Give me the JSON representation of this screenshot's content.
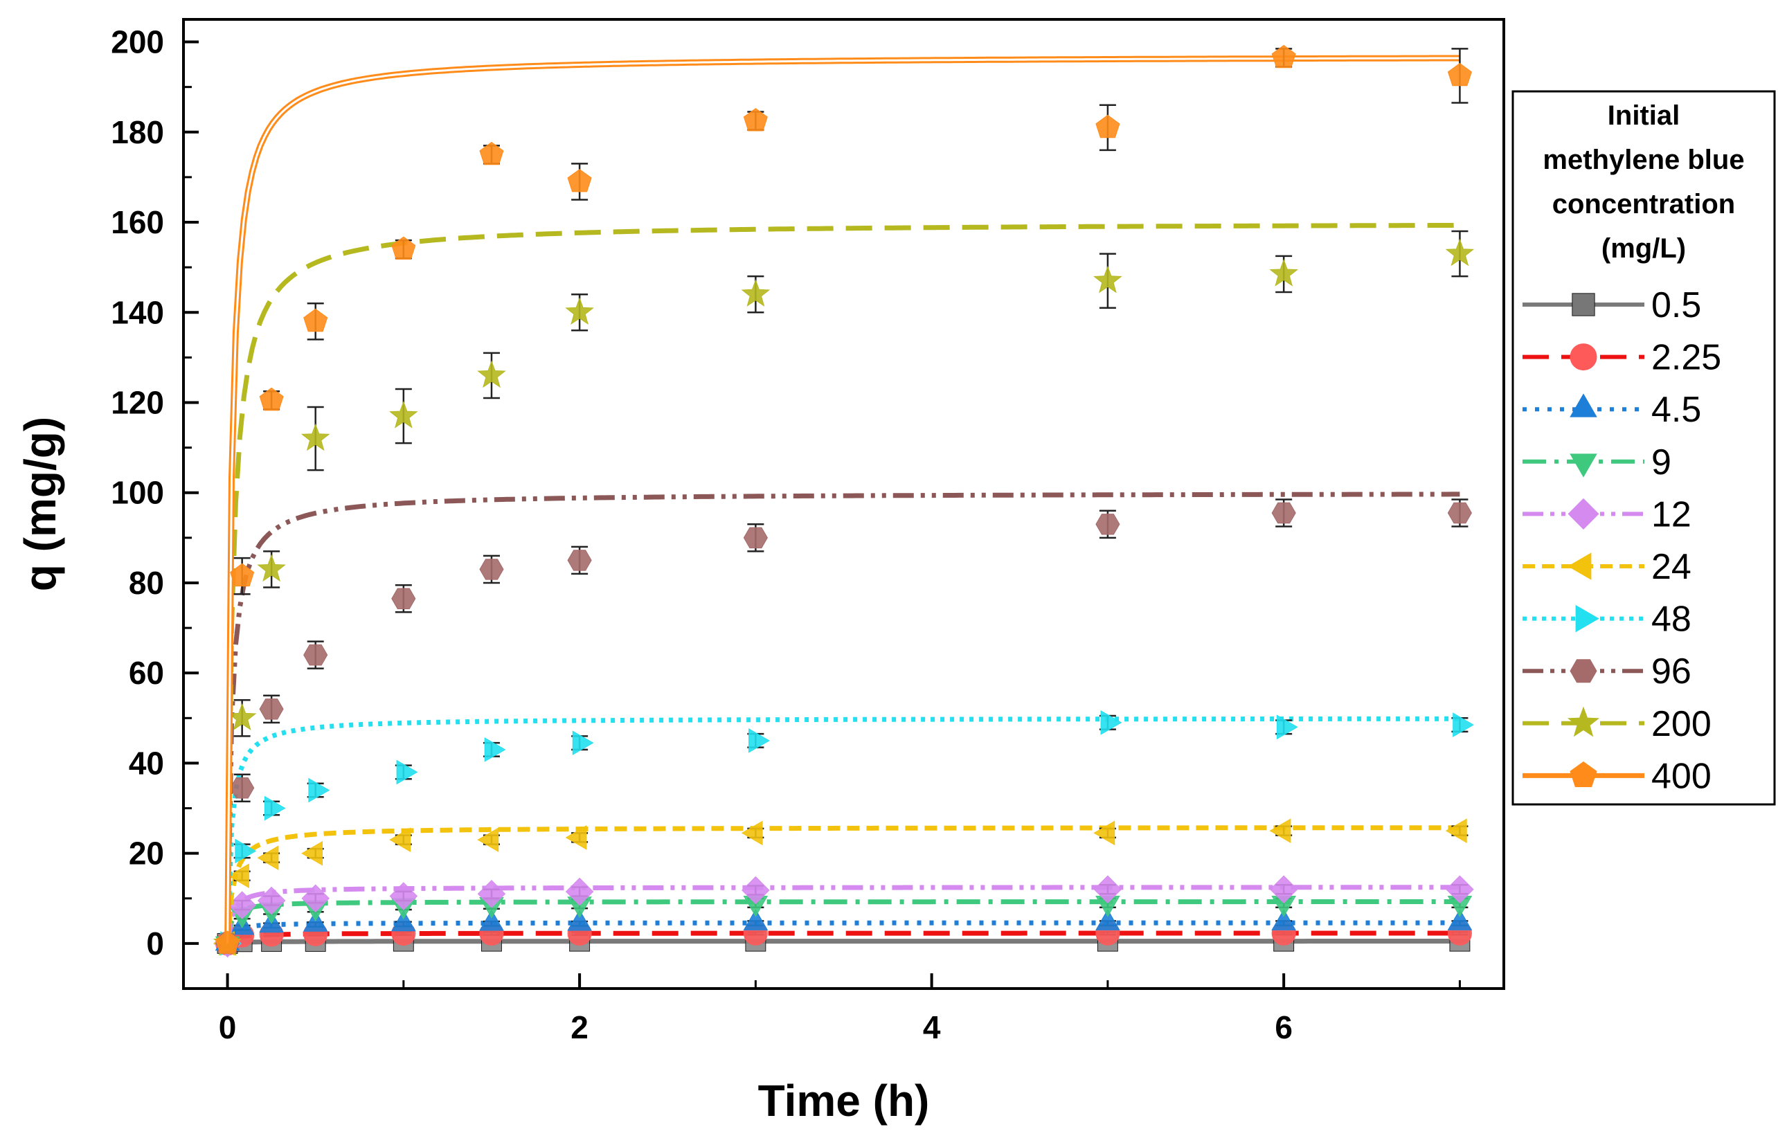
{
  "chart_data": {
    "type": "line",
    "title": "",
    "xlabel": "Time (h)",
    "ylabel": "q (mg/g)",
    "xlim": [
      -0.25,
      7.25
    ],
    "ylim": [
      -10,
      205
    ],
    "x_ticks": [
      0,
      2,
      4,
      6
    ],
    "y_ticks": [
      0,
      20,
      40,
      60,
      80,
      100,
      120,
      140,
      160,
      180,
      200
    ],
    "grid": false,
    "legend": {
      "title_lines": [
        "Initial",
        "methylene blue",
        "concentration",
        "(mg/L)"
      ],
      "placement": "right"
    },
    "x": [
      0,
      0.083,
      0.25,
      0.5,
      1,
      1.5,
      2,
      3,
      5,
      6,
      7
    ],
    "series": [
      {
        "name": "0.5",
        "color": "#1a1a1a",
        "fit_color": "#7a7a7a",
        "marker": "square",
        "dash": "solid",
        "values": [
          0,
          0.4,
          0.45,
          0.45,
          0.5,
          0.5,
          0.5,
          0.5,
          0.5,
          0.5,
          0.5
        ],
        "errors": [
          0,
          0.2,
          0.2,
          0.2,
          0.2,
          0.2,
          0.2,
          0.2,
          0.2,
          0.2,
          0.2
        ],
        "qe": 0.52,
        "k": 20
      },
      {
        "name": "2.25",
        "color": "#ff5a5a",
        "fit_color": "#ee1111",
        "marker": "circle",
        "dash": "long-dash",
        "values": [
          0,
          1.8,
          2.0,
          2.1,
          2.2,
          2.2,
          2.2,
          2.25,
          2.25,
          2.25,
          2.25
        ],
        "errors": [
          0,
          0.3,
          0.3,
          0.3,
          0.3,
          0.3,
          0.3,
          0.3,
          0.3,
          0.3,
          0.3
        ],
        "qe": 2.3,
        "k": 10
      },
      {
        "name": "4.5",
        "color": "#1e7fd8",
        "fit_color": "#1e7fd8",
        "marker": "triangle-up",
        "dash": "dot",
        "values": [
          0,
          3.5,
          4.0,
          4.2,
          4.3,
          4.4,
          4.4,
          4.5,
          4.5,
          4.5,
          4.5
        ],
        "errors": [
          0,
          0.5,
          0.5,
          0.5,
          0.5,
          0.5,
          0.5,
          0.5,
          0.5,
          0.5,
          0.5
        ],
        "qe": 4.6,
        "k": 8
      },
      {
        "name": "9",
        "color": "#3ec97e",
        "fit_color": "#3ec97e",
        "marker": "triangle-down",
        "dash": "dash-dot",
        "values": [
          0,
          6.5,
          7.5,
          8.0,
          8.5,
          8.7,
          8.8,
          9.0,
          9.0,
          9.0,
          9.0
        ],
        "errors": [
          0,
          1.0,
          1.0,
          1.0,
          1.0,
          1.0,
          1.0,
          1.0,
          1.0,
          1.0,
          1.0
        ],
        "qe": 9.3,
        "k": 5
      },
      {
        "name": "12",
        "color": "#d58af0",
        "fit_color": "#d58af0",
        "marker": "diamond",
        "dash": "dash-dot-dot",
        "values": [
          0,
          8.5,
          9.5,
          10.0,
          10.5,
          11.0,
          11.5,
          11.8,
          12.0,
          12.0,
          12.0
        ],
        "errors": [
          0,
          1.0,
          1.0,
          1.0,
          1.0,
          1.0,
          1.0,
          1.0,
          1.0,
          1.0,
          1.0
        ],
        "qe": 12.5,
        "k": 3
      },
      {
        "name": "24",
        "color": "#f2c20d",
        "fit_color": "#f2c20d",
        "marker": "triangle-left",
        "dash": "short-dash",
        "values": [
          0,
          15,
          19,
          20,
          23,
          23,
          23.5,
          24.5,
          24.5,
          25,
          25
        ],
        "errors": [
          0,
          1.0,
          1.0,
          1.0,
          1.0,
          1.0,
          1.0,
          1.0,
          1.0,
          1.0,
          1.0
        ],
        "qe": 25.8,
        "k": 1.2
      },
      {
        "name": "48",
        "color": "#22e0f0",
        "fit_color": "#22e0f0",
        "marker": "triangle-right",
        "dash": "short-dot",
        "values": [
          0,
          20.5,
          30,
          34,
          38,
          43,
          44.5,
          45,
          49,
          48,
          48.5
        ],
        "errors": [
          0,
          1.5,
          1.5,
          1.5,
          1.5,
          1.5,
          1.5,
          1.5,
          1.5,
          1.5,
          1.5
        ],
        "qe": 50,
        "k": 0.9
      },
      {
        "name": "96",
        "color": "#a56a6a",
        "fit_color": "#8c5757",
        "marker": "hexagon",
        "dash": "dash-dot-dot",
        "values": [
          0,
          34.5,
          52,
          64,
          76.5,
          83,
          85,
          90,
          93,
          95.5,
          95.5
        ],
        "errors": [
          0,
          3,
          3,
          3,
          3,
          3,
          3,
          3,
          3,
          3,
          3
        ],
        "qe": 100,
        "k": 0.42
      },
      {
        "name": "200",
        "color": "#b5b81e",
        "fit_color": "#b5b81e",
        "marker": "star",
        "dash": "long-dash",
        "values": [
          0,
          50,
          83,
          112,
          117,
          126,
          140,
          144,
          147,
          148.5,
          153
        ],
        "errors": [
          0,
          4,
          4,
          7,
          6,
          5,
          4,
          4,
          6,
          4,
          5
        ],
        "qe": 160,
        "k": 0.21
      },
      {
        "name": "400",
        "color": "#ff8c1a",
        "fit_color": "#ff8c1a",
        "marker": "pentagon",
        "dash": "double-solid",
        "values": [
          0,
          81.5,
          120.5,
          138,
          154,
          175,
          169,
          182.5,
          181,
          196.5,
          192.5
        ],
        "errors": [
          0,
          4,
          2,
          4,
          2,
          2,
          4,
          2,
          5,
          2,
          6
        ],
        "qe": 197,
        "k": 0.24
      }
    ]
  }
}
